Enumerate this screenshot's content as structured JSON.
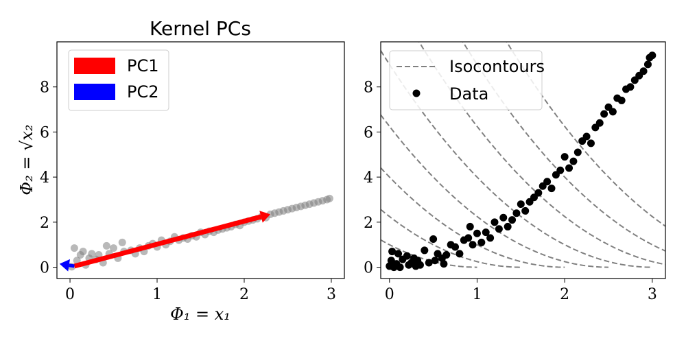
{
  "chart_data": [
    {
      "type": "scatter",
      "title": "Kernel PCs",
      "xlabel": "Φ₁ = x₁",
      "ylabel": "Φ₂ = √x₂",
      "xlim": [
        -0.15,
        3.15
      ],
      "ylim": [
        -0.5,
        10
      ],
      "xticks": [
        "0",
        "1",
        "2",
        "3"
      ],
      "yticks": [
        "0",
        "2",
        "4",
        "6",
        "8"
      ],
      "grid": false,
      "legend": {
        "placement": "top-left",
        "entries": [
          "PC1",
          "PC2"
        ]
      },
      "series": [
        {
          "points": [
            [
              0.02,
              0.02
            ],
            [
              0.05,
              0.85
            ],
            [
              0.08,
              0.3
            ],
            [
              0.12,
              0.55
            ],
            [
              0.15,
              0.7
            ],
            [
              0.18,
              0.1
            ],
            [
              0.22,
              0.4
            ],
            [
              0.25,
              0.6
            ],
            [
              0.3,
              0.35
            ],
            [
              0.33,
              0.55
            ],
            [
              0.38,
              0.2
            ],
            [
              0.42,
              0.95
            ],
            [
              0.45,
              0.6
            ],
            [
              0.5,
              0.85
            ],
            [
              0.55,
              0.4
            ],
            [
              0.6,
              1.1
            ],
            [
              0.62,
              0.7
            ],
            [
              0.7,
              0.75
            ],
            [
              0.75,
              0.6
            ],
            [
              0.8,
              0.85
            ],
            [
              0.85,
              0.7
            ],
            [
              0.9,
              0.95
            ],
            [
              0.95,
              1.05
            ],
            [
              1.0,
              0.9
            ],
            [
              1.05,
              1.2
            ],
            [
              1.1,
              1.0
            ],
            [
              1.15,
              1.15
            ],
            [
              1.2,
              1.35
            ],
            [
              1.25,
              1.2
            ],
            [
              1.3,
              1.3
            ],
            [
              1.35,
              1.25
            ],
            [
              1.4,
              1.4
            ],
            [
              1.45,
              1.35
            ],
            [
              1.5,
              1.55
            ],
            [
              1.55,
              1.45
            ],
            [
              1.6,
              1.6
            ],
            [
              1.65,
              1.55
            ],
            [
              1.7,
              1.65
            ],
            [
              1.75,
              1.7
            ],
            [
              1.8,
              1.75
            ],
            [
              1.85,
              1.8
            ],
            [
              1.9,
              1.9
            ],
            [
              1.95,
              1.85
            ],
            [
              2.0,
              2.0
            ],
            [
              2.05,
              2.05
            ],
            [
              2.1,
              2.1
            ],
            [
              2.15,
              2.15
            ],
            [
              2.2,
              2.25
            ],
            [
              2.25,
              2.2
            ],
            [
              2.3,
              2.35
            ],
            [
              2.35,
              2.4
            ],
            [
              2.4,
              2.45
            ],
            [
              2.45,
              2.5
            ],
            [
              2.5,
              2.55
            ],
            [
              2.55,
              2.6
            ],
            [
              2.6,
              2.65
            ],
            [
              2.65,
              2.7
            ],
            [
              2.7,
              2.75
            ],
            [
              2.75,
              2.8
            ],
            [
              2.8,
              2.85
            ],
            [
              2.85,
              2.9
            ],
            [
              2.9,
              2.95
            ],
            [
              2.95,
              3.0
            ],
            [
              2.98,
              3.05
            ]
          ],
          "color": "#808080"
        },
        {
          "name": "PC1",
          "from": [
            0.05,
            0.05
          ],
          "to": [
            2.3,
            2.35
          ],
          "color": "#ff0000"
        },
        {
          "name": "PC2",
          "from": [
            0.05,
            0.05
          ],
          "to": [
            -0.12,
            0.15
          ],
          "color": "#0000ff"
        }
      ]
    },
    {
      "type": "scatter",
      "title": "",
      "xlabel": "",
      "ylabel": "",
      "xlim": [
        -0.1,
        3.15
      ],
      "ylim": [
        -0.5,
        10
      ],
      "xticks": [
        "0",
        "1",
        "2",
        "3"
      ],
      "yticks": [
        "0",
        "2",
        "4",
        "6",
        "8"
      ],
      "grid": false,
      "legend": {
        "placement": "top-left",
        "entries": [
          "Isocontours",
          "Data"
        ]
      },
      "isocontour_levels": [
        1,
        1.5,
        2,
        2.5,
        3,
        3.5,
        4,
        4.5
      ],
      "series": [
        {
          "name": "Data",
          "color": "#000000",
          "points": [
            [
              0.0,
              0.05
            ],
            [
              0.02,
              0.3
            ],
            [
              0.03,
              0.7
            ],
            [
              0.05,
              0.0
            ],
            [
              0.08,
              0.15
            ],
            [
              0.1,
              0.6
            ],
            [
              0.12,
              0.0
            ],
            [
              0.15,
              0.35
            ],
            [
              0.2,
              0.5
            ],
            [
              0.22,
              0.1
            ],
            [
              0.25,
              0.2
            ],
            [
              0.28,
              0.4
            ],
            [
              0.3,
              0.05
            ],
            [
              0.32,
              0.3
            ],
            [
              0.35,
              0.1
            ],
            [
              0.4,
              0.75
            ],
            [
              0.45,
              0.2
            ],
            [
              0.5,
              1.25
            ],
            [
              0.52,
              0.3
            ],
            [
              0.55,
              0.6
            ],
            [
              0.6,
              0.4
            ],
            [
              0.62,
              0.15
            ],
            [
              0.65,
              0.55
            ],
            [
              0.7,
              1.0
            ],
            [
              0.75,
              0.9
            ],
            [
              0.8,
              0.6
            ],
            [
              0.85,
              1.2
            ],
            [
              0.9,
              1.3
            ],
            [
              0.92,
              1.8
            ],
            [
              0.95,
              1.0
            ],
            [
              1.0,
              1.5
            ],
            [
              1.05,
              1.1
            ],
            [
              1.1,
              1.55
            ],
            [
              1.15,
              1.3
            ],
            [
              1.2,
              2.0
            ],
            [
              1.25,
              1.7
            ],
            [
              1.3,
              2.2
            ],
            [
              1.35,
              1.8
            ],
            [
              1.4,
              2.1
            ],
            [
              1.45,
              2.4
            ],
            [
              1.5,
              2.8
            ],
            [
              1.55,
              2.5
            ],
            [
              1.6,
              2.9
            ],
            [
              1.65,
              3.1
            ],
            [
              1.7,
              3.3
            ],
            [
              1.75,
              3.6
            ],
            [
              1.8,
              3.8
            ],
            [
              1.85,
              3.5
            ],
            [
              1.9,
              4.1
            ],
            [
              1.95,
              4.3
            ],
            [
              2.0,
              4.9
            ],
            [
              2.05,
              4.4
            ],
            [
              2.1,
              4.7
            ],
            [
              2.15,
              5.1
            ],
            [
              2.2,
              5.6
            ],
            [
              2.25,
              5.8
            ],
            [
              2.3,
              5.5
            ],
            [
              2.35,
              6.2
            ],
            [
              2.4,
              6.4
            ],
            [
              2.45,
              6.8
            ],
            [
              2.5,
              7.1
            ],
            [
              2.55,
              6.9
            ],
            [
              2.6,
              7.5
            ],
            [
              2.65,
              7.4
            ],
            [
              2.7,
              7.9
            ],
            [
              2.75,
              8.0
            ],
            [
              2.8,
              8.3
            ],
            [
              2.85,
              8.5
            ],
            [
              2.9,
              8.7
            ],
            [
              2.95,
              9.0
            ],
            [
              2.97,
              9.3
            ],
            [
              3.0,
              9.4
            ]
          ]
        }
      ]
    }
  ]
}
